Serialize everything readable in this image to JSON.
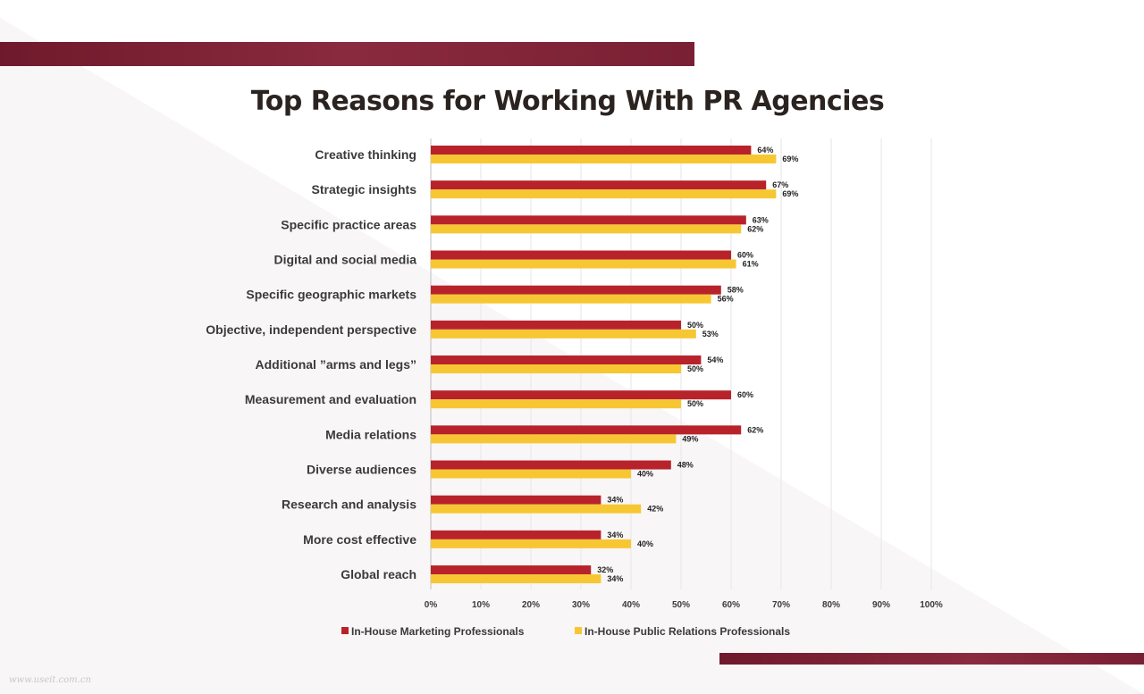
{
  "title": "Top Reasons for Working With PR Agencies",
  "watermark": "www.useit.com.cn",
  "colors": {
    "marketing": "#b8232b",
    "pr": "#f7c733",
    "band": "#7a2034",
    "text": "#3a3a3a"
  },
  "chart_data": {
    "type": "bar",
    "orientation": "horizontal",
    "categories": [
      "Creative thinking",
      "Strategic insights",
      "Specific practice areas",
      "Digital and social media",
      "Specific geographic markets",
      "Objective, independent perspective",
      "Additional ”arms and legs”",
      "Measurement and evaluation",
      "Media relations",
      "Diverse audiences",
      "Research and analysis",
      "More cost effective",
      "Global reach"
    ],
    "series": [
      {
        "name": "In-House Marketing Professionals",
        "values": [
          64,
          67,
          63,
          60,
          58,
          50,
          54,
          60,
          62,
          48,
          34,
          34,
          32
        ],
        "labels": [
          "64%",
          "67%",
          "63%",
          "60%",
          "58%",
          "50%",
          "54%",
          "60%",
          "62%",
          "48%",
          "34%",
          "34%",
          "32%"
        ]
      },
      {
        "name": "In-House Public Relations Professionals",
        "values": [
          69,
          69,
          62,
          61,
          56,
          53,
          50,
          50,
          49,
          40,
          42,
          40,
          34
        ],
        "labels": [
          "69%",
          "69%",
          "62%",
          "61%",
          "56%",
          "53%",
          "50%",
          "50%",
          "49%",
          "40%",
          "42%",
          "40%",
          "34%"
        ]
      }
    ],
    "xlim": [
      0,
      100
    ],
    "xticks": [
      "0%",
      "10%",
      "20%",
      "30%",
      "40%",
      "50%",
      "60%",
      "70%",
      "80%",
      "90%",
      "100%"
    ],
    "grid": true,
    "legend": "bottom"
  }
}
